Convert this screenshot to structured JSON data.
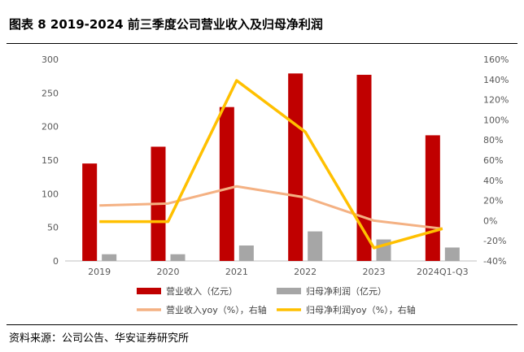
{
  "header": {
    "title": "图表 8 2019-2024 前三季度公司营业收入及归母净利润"
  },
  "footer": {
    "source": "资料来源：公司公告、华安证券研究所"
  },
  "chart_data": {
    "type": "bar+line",
    "categories": [
      "2019",
      "2020",
      "2021",
      "2022",
      "2023",
      "2024Q1-Q3"
    ],
    "left_axis": {
      "ylim": [
        0,
        300
      ],
      "ticks": [
        0,
        50,
        100,
        150,
        200,
        250,
        300
      ]
    },
    "right_axis": {
      "ylim": [
        -40,
        160
      ],
      "ticks": [
        "-40%",
        "-20%",
        "0%",
        "20%",
        "40%",
        "60%",
        "80%",
        "100%",
        "120%",
        "140%",
        "160%"
      ],
      "tick_values": [
        -40,
        -20,
        0,
        20,
        40,
        60,
        80,
        100,
        120,
        140,
        160
      ]
    },
    "series": [
      {
        "name": "营业收入（亿元）",
        "type": "bar",
        "axis": "left",
        "color": "#C00000",
        "values": [
          145,
          170,
          229,
          279,
          277,
          187
        ]
      },
      {
        "name": "归母净利润（亿元）",
        "type": "bar",
        "axis": "left",
        "color": "#A6A6A6",
        "values": [
          10,
          10,
          23,
          44,
          32,
          20
        ]
      },
      {
        "name": "营业收入yoy（%），右轴",
        "type": "line",
        "axis": "right",
        "color": "#F4B183",
        "values": [
          15,
          17,
          34,
          23,
          0,
          -8
        ]
      },
      {
        "name": "归母净利润yoy（%），右轴",
        "type": "line",
        "axis": "right",
        "color": "#FFC000",
        "values": [
          -1,
          -1,
          139,
          88,
          -27,
          -8
        ]
      }
    ],
    "legend_placement": "bottom",
    "grid": false
  }
}
